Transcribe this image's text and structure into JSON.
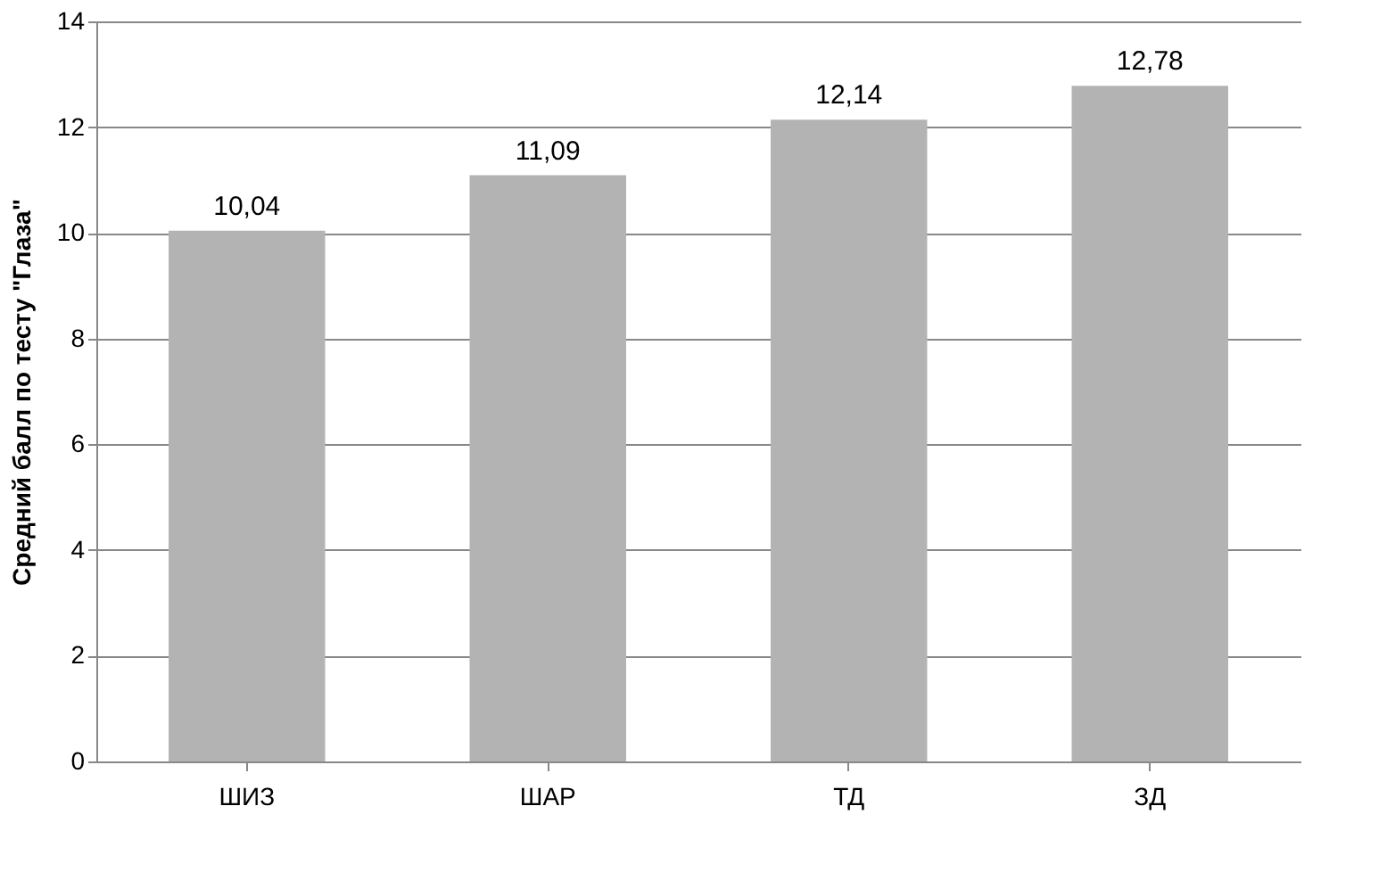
{
  "chart_data": {
    "type": "bar",
    "ylabel": "Средний балл по тесту \"Глаза\"",
    "categories": [
      "ШИЗ",
      "ШАР",
      "ТД",
      "ЗД"
    ],
    "values": [
      10.04,
      11.09,
      12.14,
      12.78
    ],
    "value_labels": [
      "10,04",
      "11,09",
      "12,14",
      "12,78"
    ],
    "color": "#b3b3b3",
    "ylim": [
      0,
      14
    ],
    "yticks": [
      0,
      2,
      4,
      6,
      8,
      10,
      12,
      14
    ],
    "grid": "y"
  }
}
